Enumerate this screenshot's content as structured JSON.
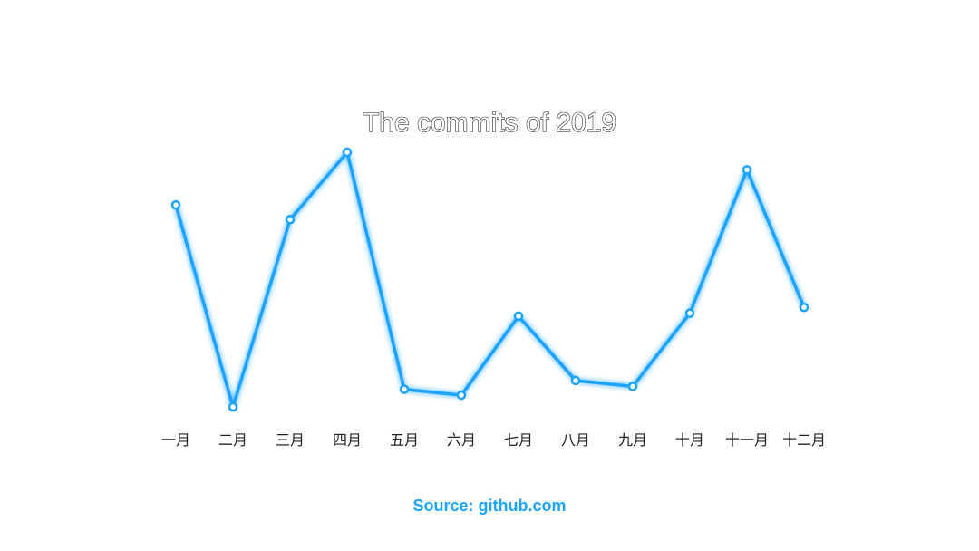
{
  "chart_data": {
    "type": "line",
    "title": "The commits of 2019",
    "categories": [
      "一月",
      "二月",
      "三月",
      "四月",
      "五月",
      "六月",
      "七月",
      "八月",
      "九月",
      "十月",
      "十一月",
      "十二月"
    ],
    "series": [
      {
        "values": [
          69,
          0,
          64,
          87,
          6,
          4,
          31,
          9,
          7,
          32,
          81,
          34
        ]
      }
    ],
    "ylim": [
      0,
      87
    ],
    "grid": false,
    "color": "#1aa3ff",
    "source": "Source: github.com"
  }
}
